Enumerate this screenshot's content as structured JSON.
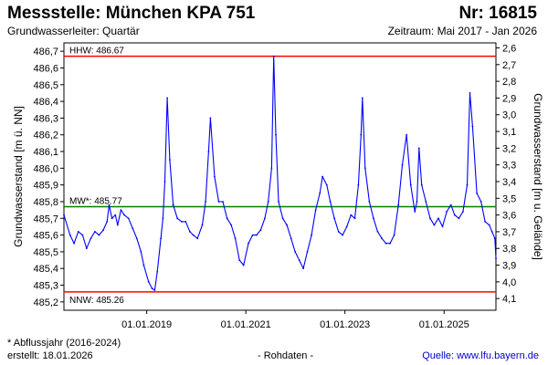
{
  "header": {
    "title": "Messstelle: München KPA 751",
    "station_number": "Nr: 16815",
    "aquifer": "Grundwasserleiter: Quartär",
    "period": "Zeitraum: Mai 2017 - Jan 2026"
  },
  "footer": {
    "footnote": "* Abflussjahr (2016-2024)",
    "created": "erstellt:  18.01.2026",
    "raw_data_note": "- Rohdaten -",
    "source": "Quelle: www.lfu.bayern.de"
  },
  "colors": {
    "series": "#0000ff",
    "extreme_lines": "#ff0000",
    "mean_line": "#008000"
  },
  "chart_data": {
    "type": "line",
    "ylabel_left": "Grundwasserstand [m ü. NN]",
    "ylabel_right": "Grundwasserstand [m u. Gelände]",
    "ylim": [
      485.15,
      486.75
    ],
    "yticks_left": [
      "485,2",
      "485,3",
      "485,4",
      "485,5",
      "485,6",
      "485,7",
      "485,8",
      "485,9",
      "486,0",
      "486,1",
      "486,2",
      "486,3",
      "486,4",
      "486,5",
      "486,6",
      "486,7"
    ],
    "yticks_right": [
      "2,6",
      "2,7",
      "2,8",
      "2,9",
      "3,0",
      "3,1",
      "3,2",
      "3,3",
      "3,4",
      "3,5",
      "3,6",
      "3,7",
      "3,8",
      "3,9",
      "4,0",
      "4,1"
    ],
    "xlim": [
      "2017-05-01",
      "2026-01-18"
    ],
    "xticks": [
      {
        "date": "2019-01-01",
        "label": "01.01.2019"
      },
      {
        "date": "2021-01-01",
        "label": "01.01.2021"
      },
      {
        "date": "2023-01-01",
        "label": "01.01.2023"
      },
      {
        "date": "2025-01-01",
        "label": "01.01.2025"
      }
    ],
    "reference_lines": [
      {
        "label": "HHW: 486.67",
        "value": 486.67,
        "color": "#ff0000"
      },
      {
        "label": "MW*: 485.77",
        "value": 485.77,
        "color": "#008000"
      },
      {
        "label": "NNW: 485.26",
        "value": 485.26,
        "color": "#ff0000"
      }
    ],
    "series": [
      {
        "color": "#0000ff",
        "x": [
          "2017-05-01",
          "2017-06-15",
          "2017-07-15",
          "2017-08-15",
          "2017-09-15",
          "2017-10-15",
          "2017-11-15",
          "2017-12-15",
          "2018-01-15",
          "2018-02-15",
          "2018-03-15",
          "2018-03-30",
          "2018-04-20",
          "2018-05-15",
          "2018-06-01",
          "2018-06-25",
          "2018-07-20",
          "2018-08-20",
          "2018-09-20",
          "2018-10-20",
          "2018-11-20",
          "2018-12-10",
          "2019-01-15",
          "2019-02-10",
          "2019-03-01",
          "2019-03-20",
          "2019-04-15",
          "2019-05-01",
          "2019-05-15",
          "2019-06-01",
          "2019-06-20",
          "2019-07-15",
          "2019-08-15",
          "2019-09-15",
          "2019-10-15",
          "2019-11-15",
          "2019-12-10",
          "2020-01-10",
          "2020-02-15",
          "2020-03-10",
          "2020-04-01",
          "2020-04-15",
          "2020-05-15",
          "2020-06-15",
          "2020-07-15",
          "2020-08-15",
          "2020-09-15",
          "2020-10-15",
          "2020-11-15",
          "2020-12-15",
          "2021-01-20",
          "2021-02-20",
          "2021-03-20",
          "2021-04-20",
          "2021-05-20",
          "2021-06-15",
          "2021-07-10",
          "2021-07-25",
          "2021-08-10",
          "2021-08-30",
          "2021-09-30",
          "2021-10-30",
          "2021-11-30",
          "2021-12-30",
          "2022-01-30",
          "2022-02-28",
          "2022-03-30",
          "2022-04-30",
          "2022-05-30",
          "2022-06-30",
          "2022-07-20",
          "2022-08-20",
          "2022-09-15",
          "2022-10-15",
          "2022-11-15",
          "2022-12-15",
          "2023-01-15",
          "2023-02-15",
          "2023-03-15",
          "2023-04-10",
          "2023-04-30",
          "2023-05-10",
          "2023-05-30",
          "2023-06-30",
          "2023-07-30",
          "2023-08-30",
          "2023-09-30",
          "2023-10-30",
          "2023-11-30",
          "2023-12-30",
          "2024-01-30",
          "2024-02-28",
          "2024-03-30",
          "2024-04-30",
          "2024-05-30",
          "2024-06-15",
          "2024-06-30",
          "2024-07-20",
          "2024-08-20",
          "2024-09-20",
          "2024-10-20",
          "2024-11-20",
          "2024-12-20",
          "2025-01-20",
          "2025-02-20",
          "2025-03-20",
          "2025-04-20",
          "2025-05-20",
          "2025-06-20",
          "2025-07-10",
          "2025-07-30",
          "2025-08-30",
          "2025-09-30",
          "2025-10-30",
          "2025-11-30",
          "2025-12-20",
          "2026-01-10",
          "2026-01-18"
        ],
        "y": [
          485.72,
          485.6,
          485.55,
          485.62,
          485.6,
          485.52,
          485.58,
          485.62,
          485.6,
          485.63,
          485.68,
          485.78,
          485.7,
          485.72,
          485.66,
          485.75,
          485.72,
          485.7,
          485.64,
          485.58,
          485.5,
          485.42,
          485.32,
          485.28,
          485.27,
          485.38,
          485.58,
          485.7,
          485.92,
          486.42,
          486.05,
          485.78,
          485.7,
          485.68,
          485.68,
          485.62,
          485.6,
          485.58,
          485.66,
          485.8,
          486.1,
          486.3,
          485.95,
          485.8,
          485.8,
          485.7,
          485.66,
          485.58,
          485.45,
          485.42,
          485.55,
          485.6,
          485.6,
          485.63,
          485.7,
          485.8,
          486.0,
          486.67,
          486.2,
          485.8,
          485.7,
          485.66,
          485.58,
          485.5,
          485.45,
          485.4,
          485.5,
          485.6,
          485.75,
          485.85,
          485.95,
          485.9,
          485.8,
          485.7,
          485.62,
          485.6,
          485.65,
          485.72,
          485.7,
          485.9,
          486.2,
          486.42,
          486.0,
          485.8,
          485.7,
          485.62,
          485.58,
          485.55,
          485.55,
          485.6,
          485.78,
          486.02,
          486.2,
          485.9,
          485.74,
          485.8,
          486.12,
          485.9,
          485.8,
          485.7,
          485.66,
          485.7,
          485.65,
          485.74,
          485.78,
          485.72,
          485.7,
          485.74,
          485.9,
          486.45,
          486.25,
          485.85,
          485.8,
          485.68,
          485.66,
          485.62,
          485.58,
          485.46
        ]
      }
    ]
  }
}
